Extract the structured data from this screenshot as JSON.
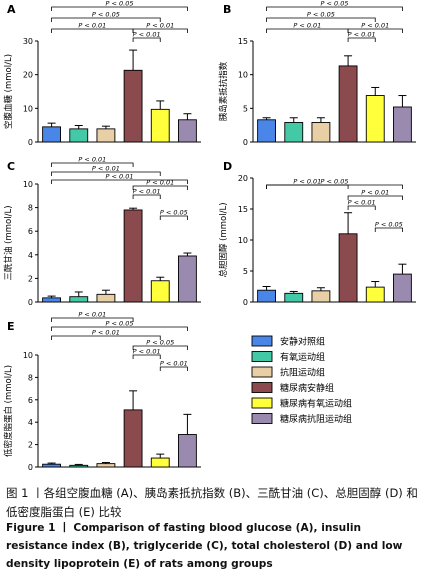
{
  "groups": [
    "安静对照组",
    "有氧运动组",
    "抗阻运动组",
    "糖尿病安静组",
    "糖尿病有氧运动组",
    "糖尿病抗阻运动组"
  ],
  "colors": [
    "#4a86e8",
    "#43c9a6",
    "#e8cfa6",
    "#8b4a4e",
    "#ffff3c",
    "#9b8ab0"
  ],
  "chart_data": [
    {
      "type": "bar",
      "panel": "A",
      "ylabel": "空腹血糖 (mmol/L)",
      "ylim": [
        0,
        30
      ],
      "ticks": [
        0,
        10,
        20,
        30
      ],
      "values": [
        4.5,
        3.9,
        3.9,
        21.3,
        9.7,
        6.6
      ],
      "errors": [
        1.1,
        1.0,
        0.8,
        6.0,
        2.5,
        1.8
      ],
      "comparisons": [
        {
          "from": 0,
          "to": 5,
          "label": "P < 0.05"
        },
        {
          "from": 0,
          "to": 4,
          "label": "P < 0.05"
        },
        {
          "from": 0,
          "to": 3,
          "label": "P < 0.01"
        },
        {
          "from": 3,
          "to": 5,
          "label": "P < 0.01"
        },
        {
          "from": 3,
          "to": 4,
          "label": "P < 0.01"
        }
      ]
    },
    {
      "type": "bar",
      "panel": "B",
      "ylabel": "胰岛素抵抗指数",
      "ylim": [
        0,
        15
      ],
      "ticks": [
        0,
        5,
        10,
        15
      ],
      "values": [
        3.3,
        2.9,
        2.9,
        11.3,
        6.9,
        5.2
      ],
      "errors": [
        0.3,
        0.7,
        0.7,
        1.5,
        1.2,
        1.7
      ],
      "comparisons": [
        {
          "from": 0,
          "to": 5,
          "label": "P < 0.05"
        },
        {
          "from": 0,
          "to": 4,
          "label": "P < 0.05"
        },
        {
          "from": 0,
          "to": 3,
          "label": "P < 0.01"
        },
        {
          "from": 3,
          "to": 5,
          "label": "P < 0.01"
        },
        {
          "from": 3,
          "to": 4,
          "label": "P < 0.01"
        }
      ]
    },
    {
      "type": "bar",
      "panel": "C",
      "ylabel": "三酰甘油 (mmol/L)",
      "ylim": [
        0,
        10
      ],
      "ticks": [
        0,
        2,
        4,
        6,
        8,
        10
      ],
      "values": [
        0.35,
        0.45,
        0.65,
        7.8,
        1.8,
        3.9
      ],
      "errors": [
        0.15,
        0.4,
        0.35,
        0.15,
        0.3,
        0.25
      ],
      "comparisons": [
        {
          "from": 0,
          "to": 3,
          "label": "P < 0.01"
        },
        {
          "from": 0,
          "to": 4,
          "label": "P < 0.01"
        },
        {
          "from": 0,
          "to": 5,
          "label": "P < 0.01"
        },
        {
          "from": 3,
          "to": 5,
          "label": "P < 0.01"
        },
        {
          "from": 3,
          "to": 4,
          "label": "P < 0.01"
        },
        {
          "from": 4,
          "to": 5,
          "label": "P < 0.05"
        }
      ]
    },
    {
      "type": "bar",
      "panel": "D",
      "ylabel": "总胆固醇 (mmol/L)",
      "ylim": [
        0,
        20
      ],
      "ticks": [
        0,
        5,
        10,
        15,
        20
      ],
      "values": [
        1.9,
        1.4,
        1.8,
        11.0,
        2.4,
        4.5
      ],
      "errors": [
        0.6,
        0.3,
        0.5,
        3.4,
        0.9,
        1.6
      ],
      "comparisons": [
        {
          "from": 0,
          "to": 5,
          "label": "P < 0.05"
        },
        {
          "from": 0,
          "to": 3,
          "label": "P < 0.01"
        },
        {
          "from": 3,
          "to": 5,
          "label": "P < 0.01"
        },
        {
          "from": 3,
          "to": 4,
          "label": "P < 0.01"
        },
        {
          "from": 4,
          "to": 5,
          "label": "P < 0.05"
        }
      ]
    },
    {
      "type": "bar",
      "panel": "E",
      "ylabel": "低密度脂蛋白 (mmol/L)",
      "ylim": [
        0,
        10
      ],
      "ticks": [
        0,
        2,
        4,
        6,
        8,
        10
      ],
      "values": [
        0.25,
        0.15,
        0.3,
        5.1,
        0.8,
        2.9
      ],
      "errors": [
        0.1,
        0.08,
        0.1,
        1.7,
        0.35,
        1.8
      ],
      "comparisons": [
        {
          "from": 0,
          "to": 3,
          "label": "P < 0.01"
        },
        {
          "from": 0,
          "to": 5,
          "label": "P < 0.05"
        },
        {
          "from": 0,
          "to": 4,
          "label": "P < 0.01"
        },
        {
          "from": 3,
          "to": 5,
          "label": "P < 0.05"
        },
        {
          "from": 3,
          "to": 4,
          "label": "P < 0.01"
        },
        {
          "from": 4,
          "to": 5,
          "label": "P < 0.01"
        }
      ]
    }
  ],
  "caption": {
    "zh": "图 1  丨各组空腹血糖 (A)、胰岛素抵抗指数 (B)、三酰甘油 (C)、总胆固醇 (D) 和低密度脂蛋白 (E) 比较",
    "en": "Figure 1  丨  Comparison of fasting blood glucose (A), insulin resistance index (B), triglyceride (C), total cholesterol (D) and low density lipoprotein (E) of rats among groups"
  }
}
